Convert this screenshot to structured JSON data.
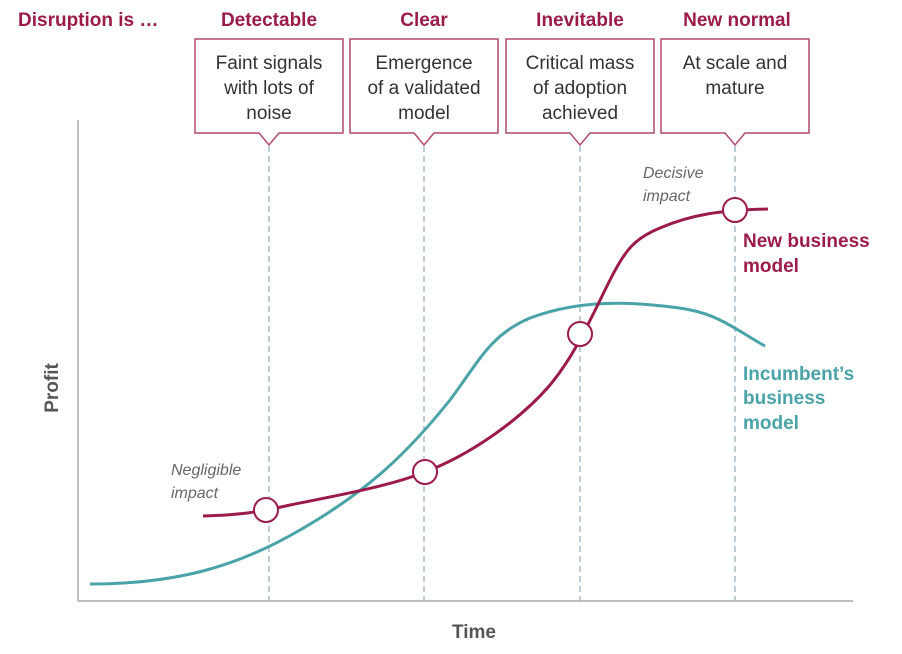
{
  "header": {
    "lead": "Disruption is …",
    "stages": [
      {
        "label": "Detectable",
        "lines": [
          "Faint signals",
          "with lots of",
          "noise"
        ]
      },
      {
        "label": "Clear",
        "lines": [
          "Emergence",
          "of a validated",
          "model"
        ]
      },
      {
        "label": "Inevitable",
        "lines": [
          "Critical mass",
          "of adoption",
          "achieved"
        ]
      },
      {
        "label": "New normal",
        "lines": [
          "At scale and",
          "mature"
        ]
      }
    ]
  },
  "axes": {
    "x": "Time",
    "y": "Profit"
  },
  "annotations": {
    "negligible": [
      "Negligible",
      "impact"
    ],
    "decisive": [
      "Decisive",
      "impact"
    ]
  },
  "series": {
    "new": {
      "lines": [
        "New business",
        "model"
      ],
      "color": "#9b1b4a"
    },
    "incumbent": {
      "lines": [
        "Incumbent’s",
        "business",
        "model"
      ],
      "color": "#4aa3a8"
    }
  }
}
